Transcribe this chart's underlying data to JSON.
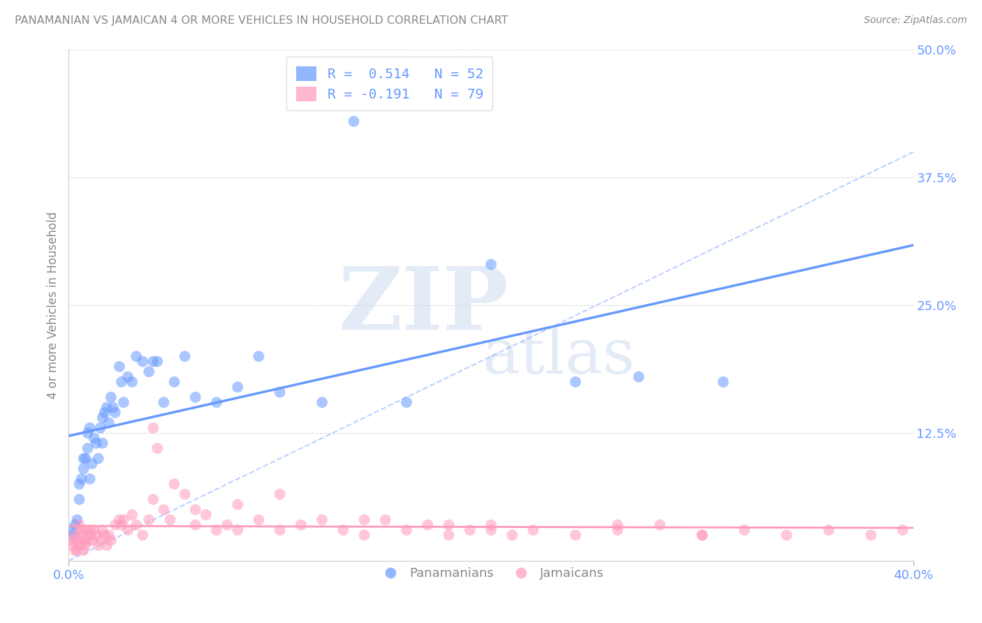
{
  "title": "PANAMANIAN VS JAMAICAN 4 OR MORE VEHICLES IN HOUSEHOLD CORRELATION CHART",
  "source": "Source: ZipAtlas.com",
  "ylabel": "4 or more Vehicles in Household",
  "xlim": [
    0.0,
    0.4
  ],
  "ylim": [
    0.0,
    0.5
  ],
  "background_color": "#ffffff",
  "legend_r_blue": "R =  0.514",
  "legend_n_blue": "N = 52",
  "legend_r_pink": "R = -0.191",
  "legend_n_pink": "N = 79",
  "blue_color": "#6699ff",
  "pink_color": "#ff99bb",
  "grid_color": "#dddddd",
  "tick_color": "#6699ff",
  "label_color": "#888888",
  "panamanian_x": [
    0.001,
    0.002,
    0.003,
    0.004,
    0.005,
    0.005,
    0.006,
    0.007,
    0.007,
    0.008,
    0.009,
    0.009,
    0.01,
    0.01,
    0.011,
    0.012,
    0.013,
    0.014,
    0.015,
    0.016,
    0.016,
    0.017,
    0.018,
    0.019,
    0.02,
    0.021,
    0.022,
    0.024,
    0.025,
    0.026,
    0.028,
    0.03,
    0.032,
    0.035,
    0.038,
    0.04,
    0.042,
    0.045,
    0.05,
    0.055,
    0.06,
    0.07,
    0.08,
    0.09,
    0.1,
    0.12,
    0.135,
    0.16,
    0.2,
    0.24,
    0.27,
    0.31
  ],
  "panamanian_y": [
    0.03,
    0.025,
    0.035,
    0.04,
    0.06,
    0.075,
    0.08,
    0.09,
    0.1,
    0.1,
    0.11,
    0.125,
    0.08,
    0.13,
    0.095,
    0.12,
    0.115,
    0.1,
    0.13,
    0.115,
    0.14,
    0.145,
    0.15,
    0.135,
    0.16,
    0.15,
    0.145,
    0.19,
    0.175,
    0.155,
    0.18,
    0.175,
    0.2,
    0.195,
    0.185,
    0.195,
    0.195,
    0.155,
    0.175,
    0.2,
    0.16,
    0.155,
    0.17,
    0.2,
    0.165,
    0.155,
    0.43,
    0.155,
    0.29,
    0.175,
    0.18,
    0.175
  ],
  "jamaican_x": [
    0.001,
    0.002,
    0.003,
    0.003,
    0.004,
    0.004,
    0.005,
    0.005,
    0.006,
    0.006,
    0.007,
    0.007,
    0.008,
    0.008,
    0.009,
    0.01,
    0.01,
    0.011,
    0.012,
    0.013,
    0.014,
    0.015,
    0.016,
    0.017,
    0.018,
    0.019,
    0.02,
    0.022,
    0.024,
    0.025,
    0.026,
    0.028,
    0.03,
    0.032,
    0.035,
    0.038,
    0.04,
    0.042,
    0.045,
    0.048,
    0.05,
    0.055,
    0.06,
    0.065,
    0.07,
    0.075,
    0.08,
    0.09,
    0.1,
    0.11,
    0.12,
    0.13,
    0.14,
    0.15,
    0.16,
    0.17,
    0.18,
    0.19,
    0.2,
    0.21,
    0.22,
    0.24,
    0.26,
    0.28,
    0.3,
    0.32,
    0.34,
    0.36,
    0.38,
    0.395,
    0.04,
    0.06,
    0.08,
    0.1,
    0.14,
    0.18,
    0.2,
    0.26,
    0.3
  ],
  "jamaican_y": [
    0.02,
    0.015,
    0.01,
    0.025,
    0.01,
    0.02,
    0.015,
    0.035,
    0.025,
    0.03,
    0.01,
    0.02,
    0.015,
    0.03,
    0.02,
    0.025,
    0.03,
    0.02,
    0.03,
    0.025,
    0.015,
    0.02,
    0.03,
    0.025,
    0.015,
    0.025,
    0.02,
    0.035,
    0.04,
    0.035,
    0.04,
    0.03,
    0.045,
    0.035,
    0.025,
    0.04,
    0.13,
    0.11,
    0.05,
    0.04,
    0.075,
    0.065,
    0.035,
    0.045,
    0.03,
    0.035,
    0.03,
    0.04,
    0.03,
    0.035,
    0.04,
    0.03,
    0.025,
    0.04,
    0.03,
    0.035,
    0.025,
    0.03,
    0.035,
    0.025,
    0.03,
    0.025,
    0.03,
    0.035,
    0.025,
    0.03,
    0.025,
    0.03,
    0.025,
    0.03,
    0.06,
    0.05,
    0.055,
    0.065,
    0.04,
    0.035,
    0.03,
    0.035,
    0.025
  ]
}
